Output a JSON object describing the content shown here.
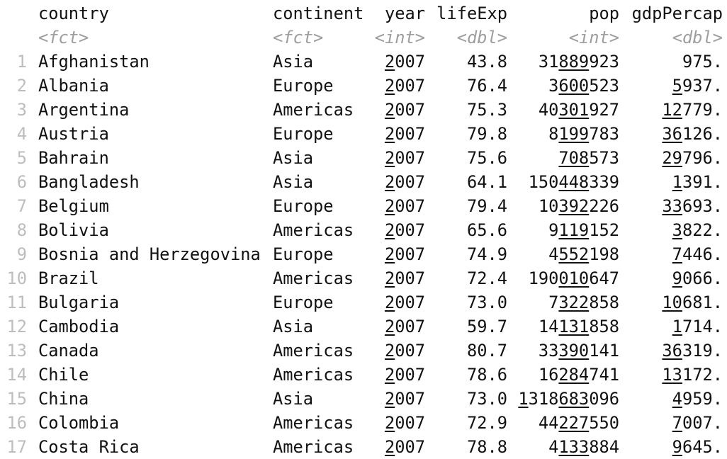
{
  "columns": [
    {
      "key": "country",
      "name": "country",
      "type": "<fct>"
    },
    {
      "key": "continent",
      "name": "continent",
      "type": "<fct>"
    },
    {
      "key": "year",
      "name": "year",
      "type": "<int>"
    },
    {
      "key": "lifeExp",
      "name": "lifeExp",
      "type": "<dbl>"
    },
    {
      "key": "pop",
      "name": "pop",
      "type": "<int>"
    },
    {
      "key": "gdpPercap",
      "name": "gdpPercap",
      "type": "<dbl>"
    }
  ],
  "rows": [
    {
      "n": "1",
      "country": "Afghanistan",
      "continent": "Asia",
      "year": "2007",
      "lifeExp": "43.8",
      "pop": "31889923",
      "gdpPercap": "975."
    },
    {
      "n": "2",
      "country": "Albania",
      "continent": "Europe",
      "year": "2007",
      "lifeExp": "76.4",
      "pop": "3600523",
      "gdpPercap": "5937."
    },
    {
      "n": "3",
      "country": "Argentina",
      "continent": "Americas",
      "year": "2007",
      "lifeExp": "75.3",
      "pop": "40301927",
      "gdpPercap": "12779."
    },
    {
      "n": "4",
      "country": "Austria",
      "continent": "Europe",
      "year": "2007",
      "lifeExp": "79.8",
      "pop": "8199783",
      "gdpPercap": "36126."
    },
    {
      "n": "5",
      "country": "Bahrain",
      "continent": "Asia",
      "year": "2007",
      "lifeExp": "75.6",
      "pop": "708573",
      "gdpPercap": "29796."
    },
    {
      "n": "6",
      "country": "Bangladesh",
      "continent": "Asia",
      "year": "2007",
      "lifeExp": "64.1",
      "pop": "150448339",
      "gdpPercap": "1391."
    },
    {
      "n": "7",
      "country": "Belgium",
      "continent": "Europe",
      "year": "2007",
      "lifeExp": "79.4",
      "pop": "10392226",
      "gdpPercap": "33693."
    },
    {
      "n": "8",
      "country": "Bolivia",
      "continent": "Americas",
      "year": "2007",
      "lifeExp": "65.6",
      "pop": "9119152",
      "gdpPercap": "3822."
    },
    {
      "n": "9",
      "country": "Bosnia and Herzegovina",
      "continent": "Europe",
      "year": "2007",
      "lifeExp": "74.9",
      "pop": "4552198",
      "gdpPercap": "7446."
    },
    {
      "n": "10",
      "country": "Brazil",
      "continent": "Americas",
      "year": "2007",
      "lifeExp": "72.4",
      "pop": "190010647",
      "gdpPercap": "9066."
    },
    {
      "n": "11",
      "country": "Bulgaria",
      "continent": "Europe",
      "year": "2007",
      "lifeExp": "73.0",
      "pop": "7322858",
      "gdpPercap": "10681."
    },
    {
      "n": "12",
      "country": "Cambodia",
      "continent": "Asia",
      "year": "2007",
      "lifeExp": "59.7",
      "pop": "14131858",
      "gdpPercap": "1714."
    },
    {
      "n": "13",
      "country": "Canada",
      "continent": "Americas",
      "year": "2007",
      "lifeExp": "80.7",
      "pop": "33390141",
      "gdpPercap": "36319."
    },
    {
      "n": "14",
      "country": "Chile",
      "continent": "Americas",
      "year": "2007",
      "lifeExp": "78.6",
      "pop": "16284741",
      "gdpPercap": "13172."
    },
    {
      "n": "15",
      "country": "China",
      "continent": "Asia",
      "year": "2007",
      "lifeExp": "73.0",
      "pop": "1318683096",
      "gdpPercap": "4959."
    },
    {
      "n": "16",
      "country": "Colombia",
      "continent": "Americas",
      "year": "2007",
      "lifeExp": "72.9",
      "pop": "44227550",
      "gdpPercap": "7007."
    },
    {
      "n": "17",
      "country": "Costa Rica",
      "continent": "Americas",
      "year": "2007",
      "lifeExp": "78.8",
      "pop": "4133884",
      "gdpPercap": "9645."
    }
  ]
}
